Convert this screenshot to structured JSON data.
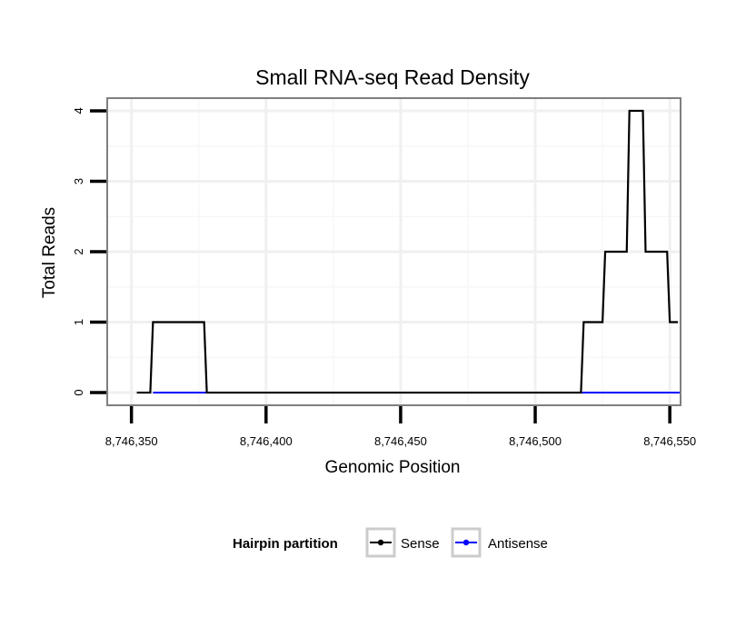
{
  "chart_data": {
    "type": "line",
    "title": "Small RNA-seq Read Density",
    "xlabel": "Genomic Position",
    "ylabel": "Total Reads",
    "xlim": [
      8746341,
      8746554
    ],
    "ylim": [
      -0.18,
      4.18
    ],
    "x_ticks": [
      8746350,
      8746400,
      8746450,
      8746500,
      8746550
    ],
    "x_tick_labels": [
      "8,746,350",
      "8,746,400",
      "8,746,450",
      "8,746,500",
      "8,746,550"
    ],
    "y_ticks": [
      0,
      1,
      2,
      3,
      4
    ],
    "y_tick_labels": [
      "0",
      "1",
      "2",
      "3",
      "4"
    ],
    "grid": true,
    "legend": {
      "title": "Hairpin partition",
      "position": "bottom",
      "entries": [
        "Sense",
        "Antisense"
      ]
    },
    "series": [
      {
        "name": "Sense",
        "color": "#000000",
        "x": [
          8746352,
          8746357,
          8746358,
          8746377,
          8746378,
          8746517,
          8746518,
          8746525,
          8746526,
          8746534,
          8746535,
          8746540,
          8746541,
          8746549,
          8746550,
          8746553
        ],
        "y": [
          0,
          0,
          1,
          1,
          0,
          0,
          1,
          1,
          2,
          2,
          4,
          4,
          2,
          2,
          1,
          1
        ]
      },
      {
        "name": "Antisense",
        "color": "#0000ff",
        "x": [
          8746358,
          8746554
        ],
        "y": [
          0,
          0
        ]
      }
    ]
  }
}
